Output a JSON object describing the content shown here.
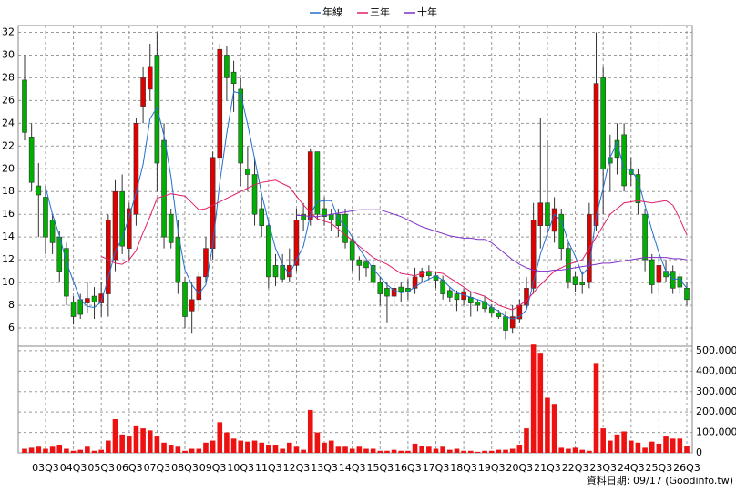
{
  "chart_data": {
    "type": "candlestick",
    "categories": [
      null,
      null,
      null,
      "03Q3",
      null,
      null,
      null,
      "04Q3",
      null,
      null,
      null,
      "05Q3",
      null,
      null,
      null,
      "06Q3",
      null,
      null,
      null,
      "07Q3",
      null,
      null,
      null,
      "08Q3",
      null,
      null,
      null,
      "09Q3",
      null,
      null,
      null,
      "10Q3",
      null,
      null,
      null,
      "11Q3",
      null,
      null,
      null,
      "12Q3",
      null,
      null,
      null,
      "13Q3",
      null,
      null,
      null,
      "14Q3",
      null,
      null,
      null,
      "15Q3",
      null,
      null,
      null,
      "16Q3",
      null,
      null,
      null,
      "17Q3",
      null,
      null,
      null,
      "18Q3",
      null,
      null,
      null,
      "19Q3",
      null,
      null,
      null,
      "20Q3",
      null,
      null,
      null,
      "21Q3",
      null,
      null,
      null,
      "22Q3",
      null,
      null,
      null,
      "23Q3",
      null,
      null,
      null,
      "24Q3",
      null,
      null,
      null,
      "25Q3",
      null,
      null,
      null,
      "26Q3"
    ],
    "open": [
      27.8,
      22.8,
      18.5,
      17.5,
      15.5,
      14,
      13,
      8.3,
      8.5,
      8.2,
      8.8,
      8.2,
      9,
      12,
      18,
      13,
      16,
      25.5,
      27,
      30,
      22.5,
      16,
      14,
      10,
      7.5,
      8.5,
      10.5,
      13,
      21,
      30,
      28.5,
      27,
      20,
      19.5,
      16.5,
      15,
      11.5,
      11.5,
      10.5,
      11.5,
      16,
      15.5,
      21.5,
      16.5,
      16,
      16,
      16,
      13.7,
      12,
      11.8,
      11.5,
      10,
      9.5,
      8.8,
      9.6,
      9.5,
      9.5,
      10.5,
      11,
      10.6,
      10.2,
      9.3,
      9,
      8.5,
      8.7,
      8.3,
      8.3,
      7.8,
      7.3,
      7,
      6,
      6.8,
      8,
      9.5,
      15,
      17,
      14.5,
      16,
      13,
      10.5,
      10,
      10,
      15,
      28,
      21,
      22.5,
      23,
      20,
      19.5,
      16,
      12,
      10,
      11,
      11,
      10.5,
      9.5
    ],
    "high": [
      30,
      24,
      20.5,
      18.5,
      16,
      14.5,
      13.5,
      8.8,
      9,
      10,
      9.6,
      10,
      16,
      19,
      19.5,
      17,
      24.5,
      29,
      31,
      32,
      24,
      16.5,
      15.5,
      10.5,
      10,
      11,
      14,
      21.5,
      31,
      30.8,
      29.5,
      28,
      22,
      21,
      17.5,
      15.5,
      12.5,
      12.5,
      13,
      16.5,
      17,
      21.8,
      21.5,
      17.5,
      16.5,
      16.5,
      16.5,
      14,
      12.3,
      12,
      12,
      10.5,
      10,
      10,
      10,
      10.3,
      11.3,
      11.3,
      11.5,
      11,
      10.6,
      9.6,
      9.3,
      9.5,
      9.2,
      8.5,
      8.8,
      8.1,
      7.6,
      7.5,
      8,
      8.5,
      10.5,
      17,
      24.5,
      22.5,
      17.5,
      16.5,
      13.5,
      11,
      11,
      17,
      32,
      29,
      23,
      24,
      24,
      21,
      20,
      16.5,
      12.5,
      12.3,
      12,
      11.5,
      10.8,
      10
    ],
    "low": [
      22.5,
      18,
      14,
      12.5,
      12.5,
      10,
      8,
      6.3,
      6.8,
      7.3,
      6.8,
      7,
      7,
      11,
      12.5,
      12,
      15,
      24,
      26,
      18,
      13,
      13,
      9,
      6,
      5.5,
      7.5,
      10,
      12,
      20,
      26,
      25,
      18.5,
      18,
      15,
      14,
      9.5,
      9.7,
      10,
      10,
      11,
      14.5,
      15,
      15.5,
      15,
      14.5,
      14,
      13,
      11,
      10.2,
      10.5,
      9.5,
      8,
      6.5,
      8,
      8.3,
      8.5,
      9,
      10,
      10.2,
      9.5,
      8.5,
      8.3,
      7.5,
      8,
      7,
      7.5,
      7.4,
      7,
      6.8,
      5,
      5.5,
      6.5,
      7.8,
      9,
      13,
      14,
      13.5,
      12,
      9.5,
      9.2,
      9,
      9.5,
      14.5,
      16,
      18,
      19.5,
      18,
      18.5,
      16,
      11,
      9,
      9,
      10,
      9,
      9,
      8
    ],
    "close": [
      23.2,
      18.8,
      17.7,
      14,
      13.5,
      11,
      8.8,
      7,
      7.2,
      8.6,
      8.3,
      9,
      15.5,
      18,
      13.2,
      16.5,
      24,
      28,
      29,
      20.5,
      14,
      13.5,
      10,
      7,
      8.5,
      10.5,
      13,
      21,
      30.5,
      28,
      27.5,
      20.5,
      19.5,
      16,
      15,
      10.5,
      10.5,
      10.3,
      11.5,
      15.5,
      15.5,
      21.5,
      16,
      15.8,
      15.5,
      15,
      13.5,
      12,
      11.5,
      11.3,
      10,
      9,
      8.8,
      9.5,
      9.2,
      9.2,
      10.5,
      11,
      10.6,
      10.2,
      9,
      8.7,
      8.5,
      9.2,
      8.2,
      8,
      7.7,
      7.3,
      7,
      5.8,
      7,
      8,
      9.5,
      15.5,
      17,
      15,
      16.5,
      13,
      10,
      9.8,
      9.8,
      16,
      27.5,
      20,
      20.5,
      21,
      18.5,
      19.5,
      17,
      12,
      9.8,
      11.5,
      10.5,
      9.5,
      9.6,
      8.5
    ],
    "up_color": "#e00000",
    "down_color": "#00b000",
    "volume": [
      20000,
      25000,
      30000,
      20000,
      30000,
      40000,
      20000,
      10000,
      15000,
      30000,
      10000,
      15000,
      60000,
      165000,
      90000,
      80000,
      130000,
      120000,
      110000,
      80000,
      50000,
      40000,
      30000,
      10000,
      20000,
      20000,
      50000,
      60000,
      150000,
      100000,
      70000,
      60000,
      55000,
      60000,
      50000,
      40000,
      40000,
      20000,
      50000,
      30000,
      15000,
      210000,
      100000,
      50000,
      60000,
      30000,
      30000,
      20000,
      30000,
      20000,
      20000,
      10000,
      10000,
      15000,
      10000,
      10000,
      45000,
      35000,
      30000,
      20000,
      30000,
      15000,
      20000,
      10000,
      10000,
      5000,
      10000,
      10000,
      15000,
      15000,
      20000,
      40000,
      120000,
      530000,
      490000,
      270000,
      240000,
      25000,
      20000,
      25000,
      15000,
      10000,
      440000,
      120000,
      60000,
      90000,
      105000,
      60000,
      50000,
      25000,
      55000,
      45000,
      80000,
      70000,
      70000,
      35000
    ],
    "volume_color": "#ee1111",
    "series": [
      {
        "name": "年線",
        "color": "#2070d0",
        "values": [
          null,
          null,
          null,
          18.4,
          16,
          14.1,
          11.8,
          10.1,
          8.5,
          7.9,
          7.8,
          8.3,
          10.4,
          12.7,
          13.9,
          15.8,
          17.9,
          20.4,
          24.4,
          25.4,
          22.9,
          19.3,
          14.5,
          11.1,
          9.8,
          9,
          9.8,
          13.3,
          18.8,
          23.1,
          26.8,
          26.6,
          23.9,
          20.9,
          17.8,
          15.3,
          13,
          11.6,
          10.7,
          12,
          13.2,
          16,
          17.1,
          17.2,
          17.2,
          15.6,
          15,
          14,
          13,
          12.1,
          11.2,
          10.5,
          9.8,
          9.3,
          9.1,
          9.2,
          9.6,
          10,
          10.3,
          10.6,
          10.2,
          9.6,
          9.1,
          8.9,
          8.7,
          8.5,
          8.3,
          7.8,
          7.5,
          7,
          6.8,
          7,
          7.6,
          10,
          12.5,
          14.3,
          16,
          15.4,
          13.6,
          12.3,
          10.7,
          11.4,
          15.8,
          18.3,
          21,
          22.3,
          20,
          19.9,
          19,
          16.8,
          14.6,
          12.6,
          11,
          10.3,
          10.3,
          9.5
        ]
      },
      {
        "name": "三年",
        "color": "#e0206a",
        "values": [
          null,
          null,
          null,
          null,
          null,
          null,
          null,
          null,
          null,
          null,
          null,
          12.3,
          12,
          11.7,
          11.6,
          12,
          12.8,
          14.4,
          15.8,
          17.4,
          17.6,
          17.8,
          17.7,
          17.6,
          17,
          16.4,
          16.5,
          16.8,
          17.1,
          17.4,
          17.7,
          18,
          18.3,
          18.6,
          18.8,
          18.9,
          19,
          18.7,
          18.4,
          17.6,
          16.8,
          16.2,
          15.6,
          15.4,
          15.2,
          14.7,
          14.2,
          13.7,
          13.2,
          12.7,
          12.2,
          11.9,
          11.6,
          11.2,
          10.8,
          10.7,
          10.6,
          10.8,
          11,
          10.9,
          10.8,
          10.4,
          10,
          9.6,
          9.2,
          9,
          8.8,
          8.4,
          8,
          7.8,
          7.6,
          8,
          8.4,
          9.1,
          9.8,
          10.4,
          11,
          11.3,
          11.6,
          11.8,
          12,
          13,
          14,
          15,
          16,
          16.5,
          17,
          17.1,
          17.2,
          17.1,
          17,
          17.1,
          17.2,
          16.8,
          15.6,
          14.2
        ]
      },
      {
        "name": "十年",
        "color": "#8030c8",
        "values": [
          null,
          null,
          null,
          null,
          null,
          null,
          null,
          null,
          null,
          null,
          null,
          null,
          null,
          null,
          null,
          null,
          null,
          null,
          null,
          null,
          null,
          null,
          null,
          null,
          null,
          null,
          null,
          null,
          null,
          null,
          null,
          null,
          null,
          null,
          null,
          null,
          null,
          null,
          null,
          15.9,
          15.9,
          15.8,
          15.8,
          15.9,
          16,
          16.1,
          16.2,
          16.3,
          16.4,
          16.4,
          16.4,
          16.4,
          16.2,
          16,
          15.8,
          15.5,
          15.2,
          14.9,
          14.7,
          14.5,
          14.3,
          14.1,
          14,
          13.9,
          13.9,
          13.8,
          13.8,
          13.5,
          13,
          12.5,
          12,
          11.6,
          11.3,
          11.1,
          11,
          11,
          11.1,
          11.1,
          11.2,
          11.3,
          11.4,
          11.5,
          11.6,
          11.7,
          11.7,
          11.8,
          11.9,
          12,
          12.1,
          12.2,
          12.2,
          12.2,
          12.2,
          12.1,
          12.1,
          12
        ]
      }
    ],
    "ylim": [
      4.4,
      32.6
    ],
    "yticks": [
      6,
      8,
      10,
      12,
      14,
      16,
      18,
      20,
      22,
      24,
      26,
      28,
      30,
      32
    ],
    "y2lim": [
      0,
      522000
    ],
    "y2ticks": [
      0,
      {
        "value": 100000,
        "label": "100,000"
      },
      {
        "value": 200000,
        "label": "200,000"
      },
      {
        "value": 300000,
        "label": "300,000"
      },
      {
        "value": 400000,
        "label": "400,000"
      },
      {
        "value": 500000,
        "label": "500,000"
      }
    ],
    "grid": true,
    "legend": "top",
    "footer": "資料日期: 09/17 (Goodinfo.tw)"
  }
}
